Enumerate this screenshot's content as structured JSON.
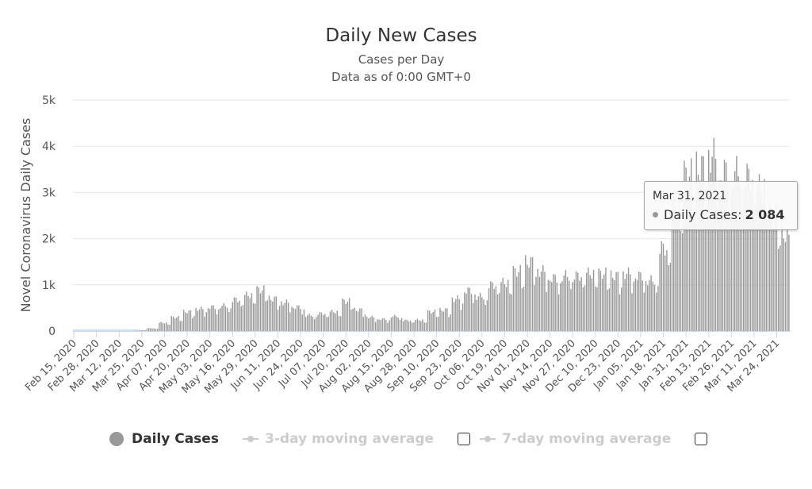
{
  "chart_data": {
    "type": "bar",
    "title": "Daily New Cases",
    "subtitle_line1": "Cases per Day",
    "subtitle_line2": "Data as of 0:00 GMT+0",
    "ylabel": "Novel Coronavirus Daily Cases",
    "xlabel": "",
    "ylim": [
      0,
      5000
    ],
    "y_ticks": [
      0,
      1000,
      2000,
      3000,
      4000,
      5000
    ],
    "y_tick_labels": [
      "0",
      "1k",
      "2k",
      "3k",
      "4k",
      "5k"
    ],
    "x_start": "Feb 15, 2020",
    "x_end": "Mar 31, 2021",
    "x_tick_labels": [
      "Feb 15, 2020",
      "Feb 28, 2020",
      "Mar 12, 2020",
      "Mar 25, 2020",
      "Apr 07, 2020",
      "Apr 20, 2020",
      "May 03, 2020",
      "May 16, 2020",
      "May 29, 2020",
      "Jun 11, 2020",
      "Jun 24, 2020",
      "Jul 07, 2020",
      "Jul 20, 2020",
      "Aug 02, 2020",
      "Aug 15, 2020",
      "Aug 28, 2020",
      "Sep 10, 2020",
      "Sep 23, 2020",
      "Oct 06, 2020",
      "Oct 19, 2020",
      "Nov 01, 2020",
      "Nov 14, 2020",
      "Nov 27, 2020",
      "Dec 10, 2020",
      "Dec 23, 2020",
      "Jan 05, 2021",
      "Jan 18, 2021",
      "Jan 31, 2021",
      "Feb 13, 2021",
      "Feb 26, 2021",
      "Mar 11, 2021",
      "Mar 24, 2021"
    ],
    "series": [
      {
        "name": "Daily Cases",
        "color": "#999999",
        "weekly_values": [
          0,
          0,
          0,
          0,
          0,
          20,
          60,
          180,
          300,
          420,
          480,
          520,
          550,
          680,
          780,
          900,
          700,
          620,
          520,
          340,
          380,
          420,
          650,
          460,
          300,
          260,
          320,
          230,
          240,
          420,
          460,
          700,
          880,
          750,
          1000,
          1050,
          1300,
          1500,
          1300,
          1150,
          1200,
          1200,
          1250,
          1250,
          1200,
          1250,
          1200,
          1100,
          1800,
          2800,
          3400,
          3550,
          3800,
          3450,
          3450,
          3350,
          3100,
          2500,
          2100,
          2000,
          1900
        ]
      },
      {
        "name": "3-day moving average",
        "visible": false
      },
      {
        "name": "7-day moving average",
        "visible": false
      }
    ]
  },
  "tooltip": {
    "date": "Mar 31, 2021",
    "series_label": "Daily Cases:",
    "value": "2 084"
  },
  "legend": {
    "items": [
      "Daily Cases",
      "3-day moving average",
      "7-day moving average"
    ]
  }
}
